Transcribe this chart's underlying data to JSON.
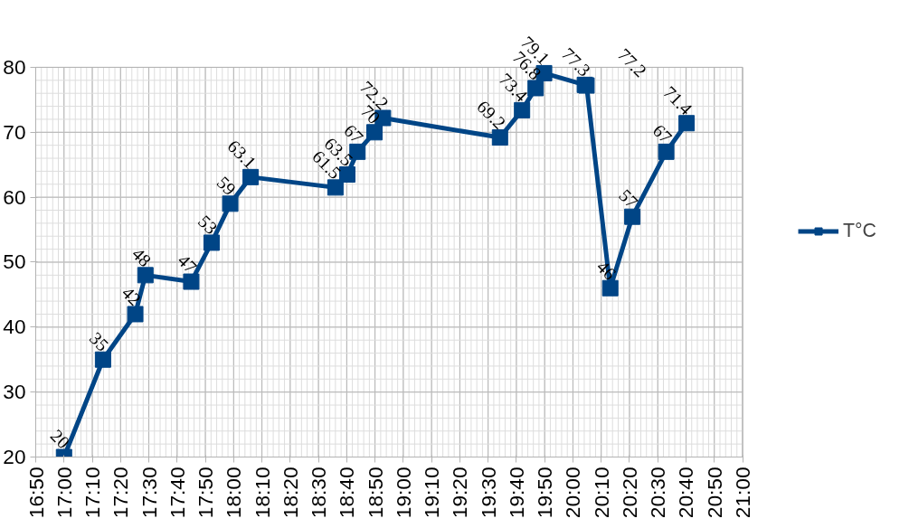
{
  "chart_data": {
    "type": "line",
    "x": [
      17.0,
      17.23,
      17.42,
      17.48,
      17.75,
      17.87,
      17.98,
      18.1,
      18.6,
      18.67,
      18.73,
      18.83,
      18.88,
      19.57,
      19.7,
      19.78,
      19.83,
      20.07,
      20.08,
      20.22,
      20.35,
      20.55,
      20.67
    ],
    "series": [
      {
        "name": "T°C",
        "color": "#004586",
        "values": [
          20,
          35,
          42,
          48,
          47,
          53,
          59,
          63.1,
          61.5,
          63.5,
          67,
          70,
          72.2,
          69.2,
          73.4,
          76.8,
          79.1,
          77.3,
          77.2,
          46,
          57,
          67,
          71.4
        ]
      }
    ],
    "xlim": [
      16.8333,
      21.0
    ],
    "xticks": [
      {
        "value": 16.8333,
        "label": "16:50"
      },
      {
        "value": 17.0,
        "label": "17:00"
      },
      {
        "value": 17.1667,
        "label": "17:10"
      },
      {
        "value": 17.3333,
        "label": "17:20"
      },
      {
        "value": 17.5,
        "label": "17:30"
      },
      {
        "value": 17.6667,
        "label": "17:40"
      },
      {
        "value": 17.8333,
        "label": "17:50"
      },
      {
        "value": 18.0,
        "label": "18:00"
      },
      {
        "value": 18.1667,
        "label": "18:10"
      },
      {
        "value": 18.3333,
        "label": "18:20"
      },
      {
        "value": 18.5,
        "label": "18:30"
      },
      {
        "value": 18.6667,
        "label": "18:40"
      },
      {
        "value": 18.8333,
        "label": "18:50"
      },
      {
        "value": 19.0,
        "label": "19:00"
      },
      {
        "value": 19.1667,
        "label": "19:10"
      },
      {
        "value": 19.3333,
        "label": "19:20"
      },
      {
        "value": 19.5,
        "label": "19:30"
      },
      {
        "value": 19.6667,
        "label": "19:40"
      },
      {
        "value": 19.8333,
        "label": "19:50"
      },
      {
        "value": 20.0,
        "label": "20:00"
      },
      {
        "value": 20.1667,
        "label": "20:10"
      },
      {
        "value": 20.3333,
        "label": "20:20"
      },
      {
        "value": 20.5,
        "label": "20:30"
      },
      {
        "value": 20.6667,
        "label": "20:40"
      },
      {
        "value": 20.8333,
        "label": "20:50"
      },
      {
        "value": 21.0,
        "label": "21:00"
      }
    ],
    "ylim": [
      20,
      80
    ],
    "yticks": [
      20,
      30,
      40,
      50,
      60,
      70,
      80
    ],
    "grid": true,
    "legend": "right",
    "marker": "square",
    "line_style": "solid",
    "data_labels": true
  }
}
